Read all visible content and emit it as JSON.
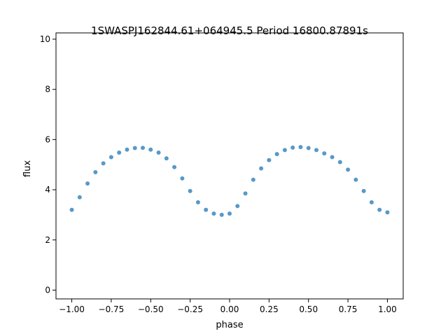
{
  "chart_data": {
    "type": "scatter",
    "title": "1SWASPJ162844.61+064945.5 Period 16800.87891s",
    "xlabel": "phase",
    "ylabel": "flux",
    "xlim": [
      -1.1,
      1.1
    ],
    "ylim": [
      -0.35,
      10.25
    ],
    "xticks": [
      -1.0,
      -0.75,
      -0.5,
      -0.25,
      0.0,
      0.25,
      0.5,
      0.75,
      1.0
    ],
    "xtick_labels": [
      "−1.00",
      "−0.75",
      "−0.50",
      "−0.25",
      "0.00",
      "0.25",
      "0.50",
      "0.75",
      "1.00"
    ],
    "yticks": [
      0,
      2,
      4,
      6,
      8,
      10
    ],
    "ytick_labels": [
      "0",
      "2",
      "4",
      "6",
      "8",
      "10"
    ],
    "grid": false,
    "marker_color": "#1f77b4",
    "series": [
      {
        "points": [
          [
            -1.0,
            3.2
          ],
          [
            -0.95,
            3.7
          ],
          [
            -0.9,
            4.25
          ],
          [
            -0.85,
            4.7
          ],
          [
            -0.8,
            5.05
          ],
          [
            -0.75,
            5.3
          ],
          [
            -0.7,
            5.48
          ],
          [
            -0.65,
            5.6
          ],
          [
            -0.6,
            5.66
          ],
          [
            -0.55,
            5.67
          ],
          [
            -0.5,
            5.6
          ],
          [
            -0.45,
            5.48
          ],
          [
            -0.4,
            5.25
          ],
          [
            -0.35,
            4.9
          ],
          [
            -0.3,
            4.45
          ],
          [
            -0.25,
            3.95
          ],
          [
            -0.2,
            3.5
          ],
          [
            -0.15,
            3.2
          ],
          [
            -0.1,
            3.05
          ],
          [
            -0.05,
            3.0
          ],
          [
            0.0,
            3.05
          ],
          [
            0.05,
            3.35
          ],
          [
            0.1,
            3.85
          ],
          [
            0.15,
            4.4
          ],
          [
            0.2,
            4.85
          ],
          [
            0.25,
            5.18
          ],
          [
            0.3,
            5.42
          ],
          [
            0.35,
            5.58
          ],
          [
            0.4,
            5.68
          ],
          [
            0.45,
            5.7
          ],
          [
            0.5,
            5.66
          ],
          [
            0.55,
            5.58
          ],
          [
            0.6,
            5.45
          ],
          [
            0.65,
            5.3
          ],
          [
            0.7,
            5.1
          ],
          [
            0.75,
            4.8
          ],
          [
            0.8,
            4.4
          ],
          [
            0.85,
            3.95
          ],
          [
            0.9,
            3.5
          ],
          [
            0.95,
            3.2
          ],
          [
            1.0,
            3.1
          ]
        ]
      }
    ]
  }
}
